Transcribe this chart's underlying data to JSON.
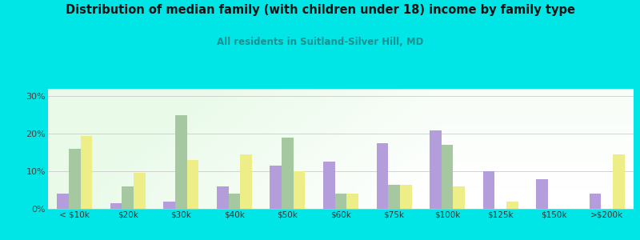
{
  "title": "Distribution of median family (with children under 18) income by family type",
  "subtitle": "All residents in Suitland-Silver Hill, MD",
  "categories": [
    "< $10k",
    "$20k",
    "$30k",
    "$40k",
    "$50k",
    "$60k",
    "$75k",
    "$100k",
    "$125k",
    "$150k",
    ">$200k"
  ],
  "married_couple": [
    4,
    1.5,
    2,
    6,
    11.5,
    12.5,
    17.5,
    21,
    10,
    8,
    4
  ],
  "male_no_wife": [
    16,
    6,
    25,
    4,
    19,
    4,
    6.5,
    17,
    0,
    0,
    0
  ],
  "female_no_husband": [
    19.5,
    9.5,
    13,
    14.5,
    10,
    4,
    6.5,
    6,
    2,
    0,
    14.5
  ],
  "color_married": "#b39ddb",
  "color_male": "#a5c8a0",
  "color_female": "#eeee88",
  "figure_bg": "#00e5e5",
  "ylim_max": 32,
  "yticks": [
    0,
    10,
    20,
    30
  ],
  "bar_width": 0.22
}
